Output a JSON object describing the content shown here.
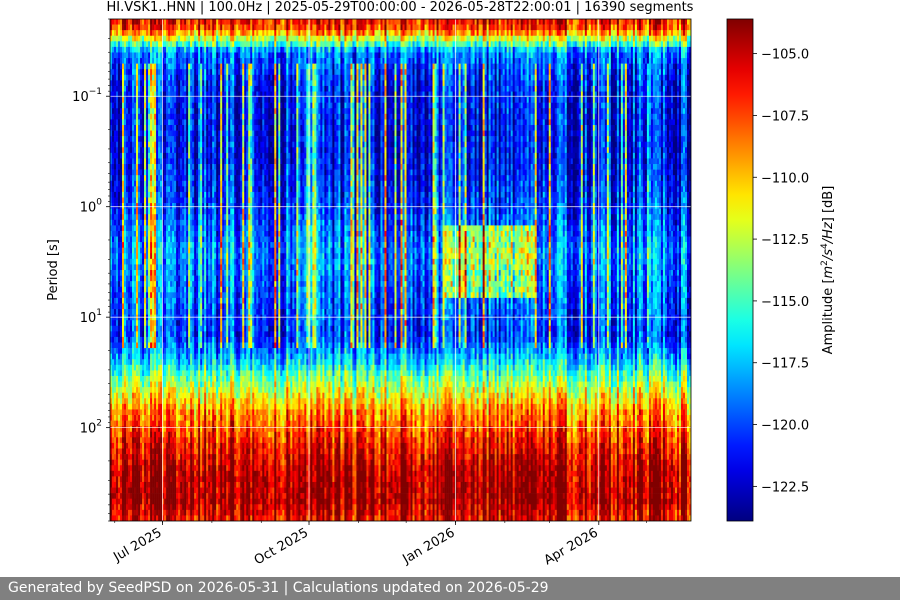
{
  "footer": {
    "text": "Generated by SeedPSD on 2026-05-31 | Calculations updated on 2026-05-29"
  },
  "chart_data": {
    "type": "heatmap",
    "title": "HI.VSK1..HNN | 100.0Hz | 2025-05-29T00:00:00 - 2026-05-28T22:00:01 | 16390 segments",
    "ylabel": "Period [s]",
    "xlabel": "",
    "y_scale": "log",
    "y_inverted": true,
    "ylim": [
      0.02,
      700
    ],
    "y_ticks": [
      {
        "value": 0.1,
        "base": "10",
        "exp": "−1"
      },
      {
        "value": 1,
        "base": "10",
        "exp": "0"
      },
      {
        "value": 10,
        "base": "10",
        "exp": "1"
      },
      {
        "value": 100,
        "base": "10",
        "exp": "2"
      }
    ],
    "xlim": [
      "2025-05-29",
      "2026-05-28"
    ],
    "x_ticks": [
      {
        "date": "2025-07-01",
        "label": "Jul 2025"
      },
      {
        "date": "2025-10-01",
        "label": "Oct 2025"
      },
      {
        "date": "2026-01-01",
        "label": "Jan 2026"
      },
      {
        "date": "2026-04-01",
        "label": "Apr 2026"
      }
    ],
    "grid": true,
    "colormap": "jet",
    "colorbar": {
      "label": "Amplitude [m²/s⁴/Hz] [dB]",
      "label_parts": {
        "pre": "Amplitude [",
        "a": "m",
        "a_sup": "2",
        "b": "/s",
        "b_sup": "4",
        "c": "/Hz",
        "post": "] [dB]"
      },
      "range": [
        -123.9,
        -103.6
      ],
      "ticks": [
        -105.0,
        -107.5,
        -110.0,
        -112.5,
        -115.0,
        -117.5,
        -120.0,
        -122.5
      ],
      "tick_labels": [
        "−105.0",
        "−107.5",
        "−110.0",
        "−112.5",
        "−115.0",
        "−117.5",
        "−120.0",
        "−122.5"
      ]
    },
    "period_profile": [
      {
        "period": 0.02,
        "db": -106
      },
      {
        "period": 0.025,
        "db": -107.5
      },
      {
        "period": 0.03,
        "db": -112
      },
      {
        "period": 0.04,
        "db": -119
      },
      {
        "period": 0.08,
        "db": -121
      },
      {
        "period": 0.3,
        "db": -121.5
      },
      {
        "period": 1,
        "db": -120.5
      },
      {
        "period": 2.5,
        "db": -118.5
      },
      {
        "period": 6,
        "db": -119.5
      },
      {
        "period": 15,
        "db": -120.5
      },
      {
        "period": 25,
        "db": -117
      },
      {
        "period": 40,
        "db": -113
      },
      {
        "period": 70,
        "db": -109
      },
      {
        "period": 150,
        "db": -106
      },
      {
        "period": 250,
        "db": -104.5
      },
      {
        "period": 450,
        "db": -104
      },
      {
        "period": 700,
        "db": -106
      }
    ],
    "noisy_intervals": [
      {
        "start": "2025-12-25",
        "end": "2026-02-20",
        "period_range": [
          1.5,
          7
        ],
        "boost_db": 8
      }
    ]
  }
}
